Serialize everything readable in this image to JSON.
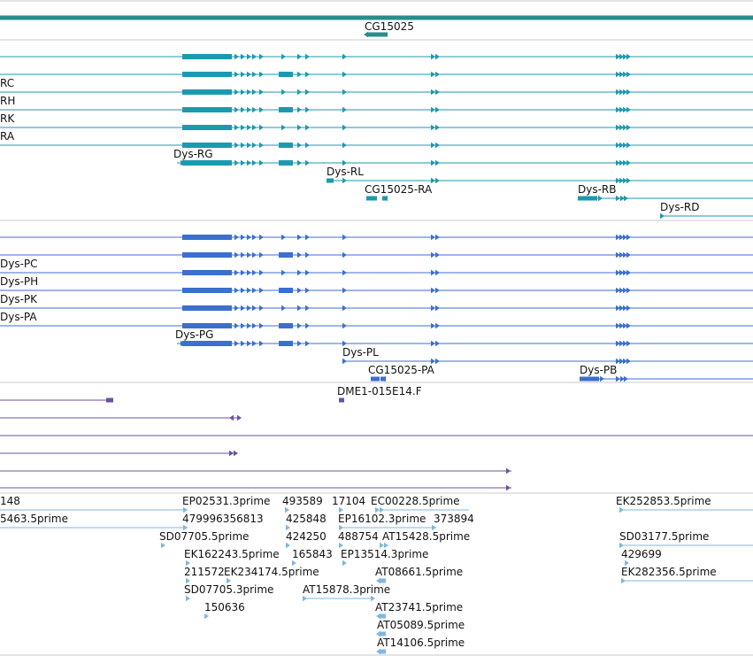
{
  "colors": {
    "background": "#ffffff",
    "separator": "#c8c8c8",
    "gene_teal": "#1b9aaf",
    "gene_teal_dark": "#2a8c8c",
    "transcript_blue": "#3b6fd0",
    "cdna_purple": "#6a51a3",
    "est_lightblue": "#7fb7de",
    "text": "#111111"
  },
  "sections": [
    {
      "name": "gene-track-section",
      "features": [
        {
          "label": "CG15025",
          "type": "gene-span"
        }
      ]
    },
    {
      "name": "teal-transcript-section",
      "features": [
        {
          "label": "",
          "type": "transcript"
        },
        {
          "label": "",
          "type": "transcript"
        },
        {
          "label": "RC",
          "type": "transcript"
        },
        {
          "label": "RH",
          "type": "transcript"
        },
        {
          "label": "RK",
          "type": "transcript"
        },
        {
          "label": "RA",
          "type": "transcript"
        },
        {
          "label": "Dys-RG",
          "type": "transcript"
        },
        {
          "label": "Dys-RL",
          "type": "transcript"
        },
        {
          "label": "CG15025-RA",
          "type": "transcript"
        },
        {
          "label": "Dys-RB",
          "type": "transcript"
        },
        {
          "label": "Dys-RD",
          "type": "transcript"
        }
      ]
    },
    {
      "name": "blue-transcript-section",
      "features": [
        {
          "label": "",
          "type": "transcript"
        },
        {
          "label": "",
          "type": "transcript"
        },
        {
          "label": "Dys-PC",
          "type": "transcript"
        },
        {
          "label": "Dys-PH",
          "type": "transcript"
        },
        {
          "label": "Dys-PK",
          "type": "transcript"
        },
        {
          "label": "Dys-PA",
          "type": "transcript"
        },
        {
          "label": "Dys-PG",
          "type": "transcript"
        },
        {
          "label": "Dys-PL",
          "type": "transcript"
        },
        {
          "label": "CG15025-PA",
          "type": "transcript"
        },
        {
          "label": "Dys-PB",
          "type": "transcript"
        }
      ]
    },
    {
      "name": "cdna-section",
      "features": [
        {
          "label": "DME1-015E14.F",
          "type": "cdna"
        }
      ]
    },
    {
      "name": "est-section",
      "features": [
        {
          "label": "148",
          "type": "est"
        },
        {
          "label": "EP02531.3prime",
          "type": "est"
        },
        {
          "label": "493589",
          "type": "est"
        },
        {
          "label": "17104",
          "type": "est"
        },
        {
          "label": "EC00228.5prime",
          "type": "est"
        },
        {
          "label": "EK252853.5prime",
          "type": "est"
        },
        {
          "label": "5463.5prime",
          "type": "est"
        },
        {
          "label": "479996356813",
          "type": "est"
        },
        {
          "label": "425848",
          "type": "est"
        },
        {
          "label": "EP16102.3prime",
          "type": "est"
        },
        {
          "label": "373894",
          "type": "est"
        },
        {
          "label": "SD07705.5prime",
          "type": "est"
        },
        {
          "label": "424250",
          "type": "est"
        },
        {
          "label": "488754",
          "type": "est"
        },
        {
          "label": "AT15428.5prime",
          "type": "est"
        },
        {
          "label": "SD03177.5prime",
          "type": "est"
        },
        {
          "label": "EK162243.5prime",
          "type": "est"
        },
        {
          "label": "165843",
          "type": "est"
        },
        {
          "label": "EP13514.3prime",
          "type": "est"
        },
        {
          "label": "429699",
          "type": "est"
        },
        {
          "label": "211572",
          "type": "est"
        },
        {
          "label": "EK234174.5prime",
          "type": "est"
        },
        {
          "label": "AT08661.5prime",
          "type": "est"
        },
        {
          "label": "EK282356.5prime",
          "type": "est"
        },
        {
          "label": "SD07705.3prime",
          "type": "est"
        },
        {
          "label": "AT15878.3prime",
          "type": "est"
        },
        {
          "label": "150636",
          "type": "est"
        },
        {
          "label": "AT23741.5prime",
          "type": "est"
        },
        {
          "label": "AT05089.5prime",
          "type": "est"
        },
        {
          "label": "AT14106.5prime",
          "type": "est"
        }
      ]
    }
  ]
}
